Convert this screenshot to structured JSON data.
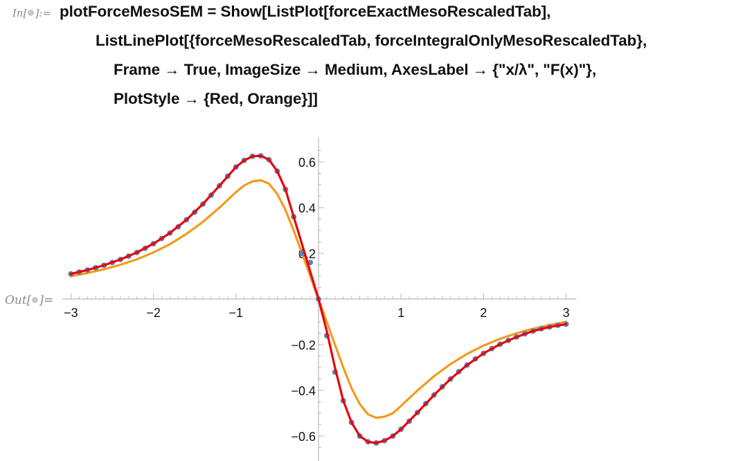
{
  "input_cell": {
    "label": "In[∙]:=",
    "label_parts": [
      "In[",
      "]:="
    ],
    "code_lines": [
      "plotForceMesoSEM = Show[ListPlot[forceExactMesoRescaledTab],",
      "ListLinePlot[{forceMesoRescaledTab, forceIntegralOnlyMesoRescaledTab},",
      "Frame → True, ImageSize → Medium, AxesLabel → {\"x/λ\", \"F(x)\"},",
      "PlotStyle → {Red, Orange}]]"
    ]
  },
  "output_cell": {
    "label": "Out[∙]=",
    "label_parts": [
      "Out[",
      "]="
    ]
  },
  "chart_data": {
    "type": "line",
    "title": "",
    "xlabel": "",
    "ylabel": "",
    "xlim": [
      -3,
      3
    ],
    "ylim": [
      -0.68,
      0.7
    ],
    "x_ticks": [
      -3,
      -2,
      -1,
      1,
      2,
      3
    ],
    "x_tick_labels": [
      "−3",
      "−2",
      "−1",
      "1",
      "2",
      "3"
    ],
    "y_ticks": [
      0.6,
      0.4,
      0.2,
      -0.2,
      -0.4,
      -0.6
    ],
    "y_tick_labels": [
      "0.6",
      "0.4",
      "0.2",
      "−0.2",
      "−0.4",
      "−0.6"
    ],
    "grid": false,
    "series": [
      {
        "style": "points",
        "color": "#5e81b5",
        "x": [
          -3.0,
          -2.9,
          -2.8,
          -2.7,
          -2.6,
          -2.5,
          -2.4,
          -2.3,
          -2.2,
          -2.1,
          -2.0,
          -1.9,
          -1.8,
          -1.7,
          -1.6,
          -1.5,
          -1.4,
          -1.3,
          -1.2,
          -1.1,
          -1.0,
          -0.9,
          -0.8,
          -0.7,
          -0.6,
          -0.5,
          -0.4,
          -0.3,
          -0.2,
          -0.1,
          0.0,
          0.1,
          0.2,
          0.3,
          0.4,
          0.5,
          0.6,
          0.7,
          0.8,
          0.9,
          1.0,
          1.1,
          1.2,
          1.3,
          1.4,
          1.5,
          1.6,
          1.7,
          1.8,
          1.9,
          2.0,
          2.1,
          2.2,
          2.3,
          2.4,
          2.5,
          2.6,
          2.7,
          2.8,
          2.9,
          3.0
        ],
        "y": [
          0.11,
          0.118,
          0.127,
          0.137,
          0.148,
          0.16,
          0.173,
          0.188,
          0.204,
          0.222,
          0.242,
          0.265,
          0.289,
          0.316,
          0.347,
          0.38,
          0.416,
          0.455,
          0.496,
          0.538,
          0.578,
          0.607,
          0.625,
          0.627,
          0.61,
          0.56,
          0.48,
          0.36,
          0.2,
          0.16,
          0.0,
          -0.16,
          -0.32,
          -0.445,
          -0.54,
          -0.6,
          -0.625,
          -0.63,
          -0.62,
          -0.6,
          -0.57,
          -0.535,
          -0.497,
          -0.458,
          -0.42,
          -0.384,
          -0.35,
          -0.318,
          -0.289,
          -0.262,
          -0.238,
          -0.217,
          -0.198,
          -0.181,
          -0.166,
          -0.152,
          -0.14,
          -0.13,
          -0.122,
          -0.115,
          -0.11
        ]
      },
      {
        "style": "line",
        "color": "#e8000b",
        "x": [
          -3.0,
          -2.8,
          -2.6,
          -2.4,
          -2.2,
          -2.0,
          -1.8,
          -1.6,
          -1.4,
          -1.2,
          -1.0,
          -0.9,
          -0.8,
          -0.7,
          -0.6,
          -0.5,
          -0.4,
          -0.3,
          -0.2,
          -0.1,
          0.0,
          0.1,
          0.2,
          0.3,
          0.4,
          0.5,
          0.6,
          0.7,
          0.8,
          0.9,
          1.0,
          1.2,
          1.4,
          1.6,
          1.8,
          2.0,
          2.2,
          2.4,
          2.6,
          2.8,
          3.0
        ],
        "y": [
          0.11,
          0.127,
          0.148,
          0.173,
          0.204,
          0.242,
          0.289,
          0.347,
          0.416,
          0.496,
          0.578,
          0.607,
          0.625,
          0.627,
          0.61,
          0.56,
          0.48,
          0.36,
          0.24,
          0.12,
          0.0,
          -0.14,
          -0.3,
          -0.445,
          -0.54,
          -0.6,
          -0.625,
          -0.63,
          -0.62,
          -0.6,
          -0.57,
          -0.497,
          -0.42,
          -0.35,
          -0.289,
          -0.238,
          -0.198,
          -0.166,
          -0.14,
          -0.122,
          -0.11
        ]
      },
      {
        "style": "line",
        "color": "#f39a1a",
        "x": [
          -3.0,
          -2.8,
          -2.6,
          -2.4,
          -2.2,
          -2.0,
          -1.8,
          -1.6,
          -1.4,
          -1.2,
          -1.0,
          -0.9,
          -0.8,
          -0.7,
          -0.6,
          -0.5,
          -0.4,
          -0.3,
          -0.2,
          -0.1,
          0.0,
          0.1,
          0.2,
          0.3,
          0.4,
          0.5,
          0.6,
          0.7,
          0.8,
          0.9,
          1.0,
          1.2,
          1.4,
          1.6,
          1.8,
          2.0,
          2.2,
          2.4,
          2.6,
          2.8,
          3.0
        ],
        "y": [
          0.1,
          0.114,
          0.13,
          0.15,
          0.174,
          0.204,
          0.24,
          0.285,
          0.338,
          0.4,
          0.468,
          0.497,
          0.515,
          0.52,
          0.505,
          0.46,
          0.39,
          0.3,
          0.2,
          0.1,
          0.0,
          -0.1,
          -0.2,
          -0.3,
          -0.39,
          -0.46,
          -0.505,
          -0.52,
          -0.515,
          -0.5,
          -0.468,
          -0.4,
          -0.338,
          -0.285,
          -0.24,
          -0.204,
          -0.174,
          -0.15,
          -0.13,
          -0.114,
          -0.1
        ]
      }
    ]
  }
}
